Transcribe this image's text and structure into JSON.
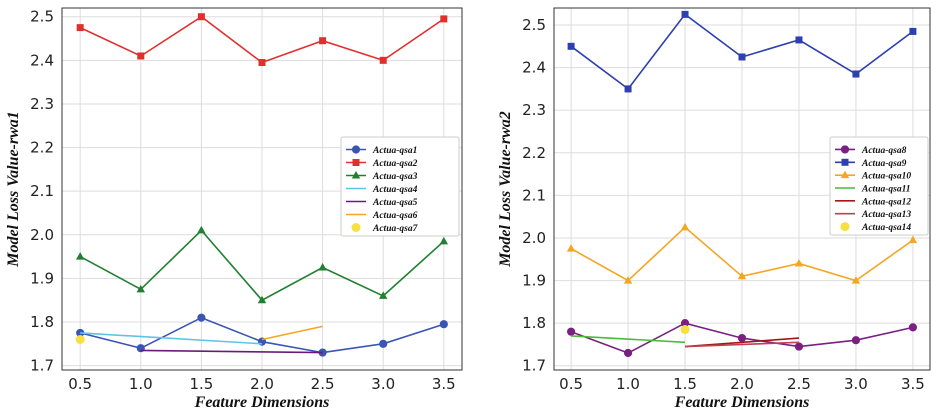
{
  "chart_data": [
    {
      "type": "line",
      "xlabel": "Feature Dimensions",
      "ylabel": "Model Loss Value-rwa1",
      "xlim": [
        0.35,
        3.65
      ],
      "ylim": [
        1.69,
        2.52
      ],
      "xticks": [
        "0.5",
        "1.0",
        "1.5",
        "2.0",
        "2.5",
        "3.0",
        "3.5"
      ],
      "yticks": [
        "1.7",
        "1.8",
        "1.9",
        "2.0",
        "2.1",
        "2.2",
        "2.3",
        "2.4",
        "2.5"
      ],
      "grid": true,
      "legend_position": "center-right",
      "series": [
        {
          "name": "Actua-qsa1",
          "color": "#3a55b4",
          "marker": "circle",
          "x": [
            0.5,
            1.0,
            1.5,
            2.0,
            2.5,
            3.0,
            3.5
          ],
          "y": [
            1.775,
            1.74,
            1.81,
            1.755,
            1.73,
            1.75,
            1.795
          ]
        },
        {
          "name": "Actua-qsa2",
          "color": "#e0302e",
          "marker": "square",
          "x": [
            0.5,
            1.0,
            1.5,
            2.0,
            2.5,
            3.0,
            3.5
          ],
          "y": [
            2.475,
            2.41,
            2.5,
            2.395,
            2.445,
            2.4,
            2.495
          ]
        },
        {
          "name": "Actua-qsa3",
          "color": "#208030",
          "marker": "triangle",
          "x": [
            0.5,
            1.0,
            1.5,
            2.0,
            2.5,
            3.0,
            3.5
          ],
          "y": [
            1.95,
            1.875,
            2.01,
            1.85,
            1.925,
            1.86,
            1.985
          ]
        },
        {
          "name": "Actua-qsa4",
          "color": "#5ec4e6",
          "marker": "none",
          "x": [
            0.5,
            2.0
          ],
          "y": [
            1.775,
            1.75
          ]
        },
        {
          "name": "Actua-qsa5",
          "color": "#6a1b7a",
          "marker": "none",
          "x": [
            1.0,
            2.5
          ],
          "y": [
            1.735,
            1.73
          ]
        },
        {
          "name": "Actua-qsa6",
          "color": "#f4a623",
          "marker": "none",
          "x": [
            2.0,
            2.5
          ],
          "y": [
            1.76,
            1.79
          ]
        },
        {
          "name": "Actua-qsa7",
          "color": "#f8e040",
          "marker": "dot",
          "x": [
            0.5
          ],
          "y": [
            1.76
          ]
        }
      ]
    },
    {
      "type": "line",
      "xlabel": "Feature Dimensions",
      "ylabel": "Model Loss Value-rwa2",
      "xlim": [
        0.35,
        3.65
      ],
      "ylim": [
        1.69,
        2.54
      ],
      "xticks": [
        "0.5",
        "1.0",
        "1.5",
        "2.0",
        "2.5",
        "3.0",
        "3.5"
      ],
      "yticks": [
        "1.7",
        "1.8",
        "1.9",
        "2.0",
        "2.1",
        "2.2",
        "2.3",
        "2.4",
        "2.5"
      ],
      "grid": true,
      "legend_position": "center-right",
      "series": [
        {
          "name": "Actua-qsa8",
          "color": "#7a2082",
          "marker": "circle",
          "x": [
            0.5,
            1.0,
            1.5,
            2.0,
            2.5,
            3.0,
            3.5
          ],
          "y": [
            1.78,
            1.73,
            1.8,
            1.765,
            1.745,
            1.76,
            1.79
          ]
        },
        {
          "name": "Actua-qsa9",
          "color": "#2e3fb0",
          "marker": "square",
          "x": [
            0.5,
            1.0,
            1.5,
            2.0,
            2.5,
            3.0,
            3.5
          ],
          "y": [
            2.45,
            2.35,
            2.525,
            2.425,
            2.465,
            2.385,
            2.485
          ]
        },
        {
          "name": "Actua-qsa10",
          "color": "#f4a623",
          "marker": "triangle",
          "x": [
            0.5,
            1.0,
            1.5,
            2.0,
            2.5,
            3.0,
            3.5
          ],
          "y": [
            1.975,
            1.9,
            2.025,
            1.91,
            1.94,
            1.9,
            1.995
          ]
        },
        {
          "name": "Actua-qsa11",
          "color": "#4cba3c",
          "marker": "none",
          "x": [
            0.5,
            1.5
          ],
          "y": [
            1.77,
            1.755
          ]
        },
        {
          "name": "Actua-qsa12",
          "color": "#a01818",
          "marker": "none",
          "x": [
            1.5,
            2.5
          ],
          "y": [
            1.745,
            1.765
          ]
        },
        {
          "name": "Actua-qsa13",
          "color": "#c04050",
          "marker": "none",
          "x": [
            1.5,
            2.5
          ],
          "y": [
            1.745,
            1.755
          ]
        },
        {
          "name": "Actua-qsa14",
          "color": "#f8e040",
          "marker": "dot",
          "x": [
            1.5
          ],
          "y": [
            1.785
          ]
        }
      ]
    }
  ]
}
